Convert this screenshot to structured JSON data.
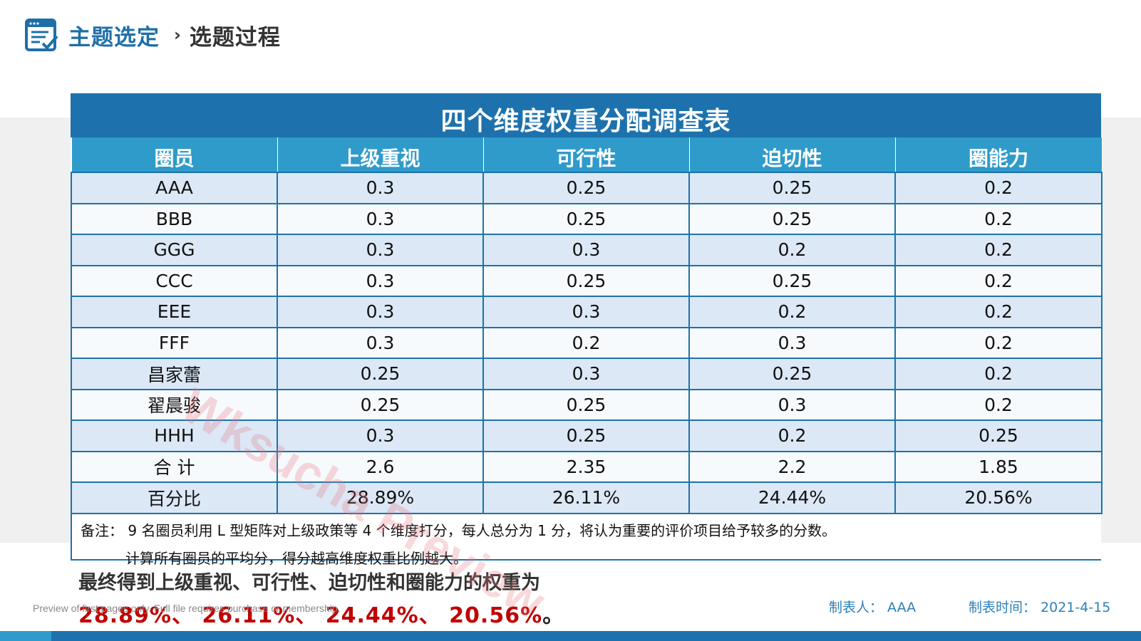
{
  "header": {
    "section": "主题选定",
    "subsection": "选题过程"
  },
  "table": {
    "title": "四个维度权重分配调查表",
    "columns": [
      "圈员",
      "上级重视",
      "可行性",
      "迫切性",
      "圈能力"
    ],
    "rows": [
      [
        "AAA",
        "0.3",
        "0.25",
        "0.25",
        "0.2"
      ],
      [
        "BBB",
        "0.3",
        "0.25",
        "0.25",
        "0.2"
      ],
      [
        "GGG",
        "0.3",
        "0.3",
        "0.2",
        "0.2"
      ],
      [
        "CCC",
        "0.3",
        "0.25",
        "0.25",
        "0.2"
      ],
      [
        "EEE",
        "0.3",
        "0.3",
        "0.2",
        "0.2"
      ],
      [
        "FFF",
        "0.3",
        "0.2",
        "0.3",
        "0.2"
      ],
      [
        "昌家蕾",
        "0.25",
        "0.3",
        "0.25",
        "0.2"
      ],
      [
        "翟晨骏",
        "0.25",
        "0.25",
        "0.3",
        "0.2"
      ],
      [
        "HHH",
        "0.3",
        "0.25",
        "0.2",
        "0.25"
      ],
      [
        "合  计",
        "2.6",
        "2.35",
        "2.2",
        "1.85"
      ],
      [
        "百分比",
        "28.89%",
        "26.11%",
        "24.44%",
        "20.56%"
      ]
    ]
  },
  "note": {
    "line1": "备注： 9 名圈员利用 L 型矩阵对上级政策等 4 个维度打分，每人总分为 1 分，将认为重要的评价项目给予较多的分数。",
    "line2": "计算所有圈员的平均分，得分越高维度权重比例越大。"
  },
  "conclusion": {
    "line1": "最终得到上级重视、可行性、迫切性和圈能力的权重为",
    "values": "28.89%、 26.11%、 24.44%、 20.56%",
    "end": "。"
  },
  "footer": {
    "maker": "制表人： AAA",
    "date": "制表时间： 2021-4-15",
    "preview_note": "Preview of first pages only. Full file requires purchase or membership."
  },
  "watermark": "Wksucha Preview",
  "colors": {
    "primary": "#1d72ad",
    "header_row": "#2f9bcb",
    "accent_red": "#c00000"
  }
}
